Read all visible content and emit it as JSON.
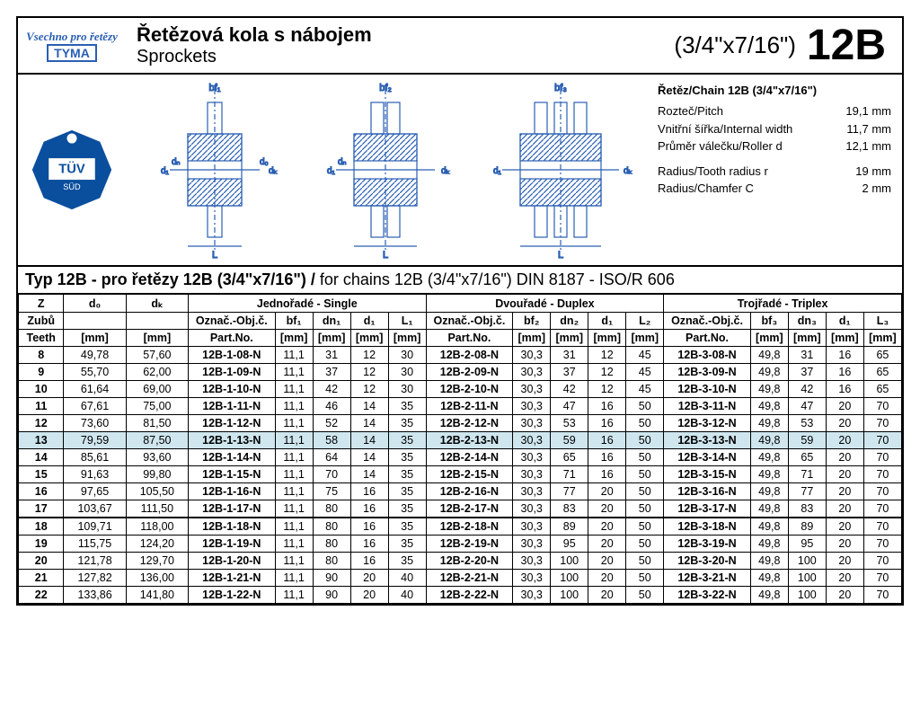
{
  "header": {
    "logo_script": "Vsechno\npro řetězy",
    "logo_box": "TYMA",
    "title_cz": "Řetězová kola s nábojem",
    "title_en": "Sprockets",
    "dimension": "(3/4\"x7/16\")",
    "code": "12B"
  },
  "specs": {
    "title": "Řetěz/Chain 12B (3/4\"x7/16\")",
    "rows": [
      {
        "label": "Rozteč/Pitch",
        "value": "19,1 mm"
      },
      {
        "label": "Vnitřní šířka/Internal width",
        "value": "11,7 mm"
      },
      {
        "label": "Průměr válečku/Roller d",
        "value": "12,1 mm"
      }
    ],
    "rows2": [
      {
        "label": "Radius/Tooth radius r",
        "value": "19 mm"
      },
      {
        "label": "Radius/Chamfer C",
        "value": "2 mm"
      }
    ]
  },
  "typbar": {
    "bold": "Typ 12B -  pro řetězy 12B (3/4\"x7/16\") /",
    "rest": " for chains 12B (3/4\"x7/16\") DIN 8187 - ISO/R 606"
  },
  "headers": {
    "h_single": "Jednořadé - Single",
    "h_duplex": "Dvouřadé - Duplex",
    "h_triplex": "Trojřadé - Triplex",
    "z": "Z",
    "d0": "d₀",
    "dk": "dₖ",
    "zubu": "Zubů",
    "teeth": "Teeth",
    "mm": "[mm]",
    "oznac": "Označ.-Obj.č.",
    "partno": "Part.No.",
    "bf1": "bf₁",
    "dn1": "dn₁",
    "d1": "d₁",
    "l1": "L₁",
    "bf2": "bf₂",
    "dn2": "dn₂",
    "l2": "L₂",
    "bf3": "bf₃",
    "dn3": "dn₃",
    "l3": "L₃"
  },
  "drawing_labels": {
    "bf1": "bf₁",
    "bf2": "bf₂",
    "bf3": "bf₃",
    "L": "L"
  },
  "rows": [
    {
      "z": "8",
      "d0": "49,78",
      "dk": "57,60",
      "s": {
        "pn": "12B-1-08-N",
        "bf": "11,1",
        "dn": "31",
        "d": "12",
        "l": "30"
      },
      "d": {
        "pn": "12B-2-08-N",
        "bf": "30,3",
        "dn": "31",
        "d1": "12",
        "l": "45"
      },
      "t": {
        "pn": "12B-3-08-N",
        "bf": "49,8",
        "dn": "31",
        "d1": "16",
        "l": "65"
      }
    },
    {
      "z": "9",
      "d0": "55,70",
      "dk": "62,00",
      "s": {
        "pn": "12B-1-09-N",
        "bf": "11,1",
        "dn": "37",
        "d": "12",
        "l": "30"
      },
      "d": {
        "pn": "12B-2-09-N",
        "bf": "30,3",
        "dn": "37",
        "d1": "12",
        "l": "45"
      },
      "t": {
        "pn": "12B-3-09-N",
        "bf": "49,8",
        "dn": "37",
        "d1": "16",
        "l": "65"
      }
    },
    {
      "z": "10",
      "d0": "61,64",
      "dk": "69,00",
      "s": {
        "pn": "12B-1-10-N",
        "bf": "11,1",
        "dn": "42",
        "d": "12",
        "l": "30"
      },
      "d": {
        "pn": "12B-2-10-N",
        "bf": "30,3",
        "dn": "42",
        "d1": "12",
        "l": "45"
      },
      "t": {
        "pn": "12B-3-10-N",
        "bf": "49,8",
        "dn": "42",
        "d1": "16",
        "l": "65"
      }
    },
    {
      "z": "11",
      "d0": "67,61",
      "dk": "75,00",
      "s": {
        "pn": "12B-1-11-N",
        "bf": "11,1",
        "dn": "46",
        "d": "14",
        "l": "35"
      },
      "d": {
        "pn": "12B-2-11-N",
        "bf": "30,3",
        "dn": "47",
        "d1": "16",
        "l": "50"
      },
      "t": {
        "pn": "12B-3-11-N",
        "bf": "49,8",
        "dn": "47",
        "d1": "20",
        "l": "70"
      }
    },
    {
      "z": "12",
      "d0": "73,60",
      "dk": "81,50",
      "s": {
        "pn": "12B-1-12-N",
        "bf": "11,1",
        "dn": "52",
        "d": "14",
        "l": "35"
      },
      "d": {
        "pn": "12B-2-12-N",
        "bf": "30,3",
        "dn": "53",
        "d1": "16",
        "l": "50"
      },
      "t": {
        "pn": "12B-3-12-N",
        "bf": "49,8",
        "dn": "53",
        "d1": "20",
        "l": "70"
      }
    },
    {
      "z": "13",
      "d0": "79,59",
      "dk": "87,50",
      "s": {
        "pn": "12B-1-13-N",
        "bf": "11,1",
        "dn": "58",
        "d": "14",
        "l": "35"
      },
      "d": {
        "pn": "12B-2-13-N",
        "bf": "30,3",
        "dn": "59",
        "d1": "16",
        "l": "50"
      },
      "t": {
        "pn": "12B-3-13-N",
        "bf": "49,8",
        "dn": "59",
        "d1": "20",
        "l": "70"
      },
      "hl": true
    },
    {
      "z": "14",
      "d0": "85,61",
      "dk": "93,60",
      "s": {
        "pn": "12B-1-14-N",
        "bf": "11,1",
        "dn": "64",
        "d": "14",
        "l": "35"
      },
      "d": {
        "pn": "12B-2-14-N",
        "bf": "30,3",
        "dn": "65",
        "d1": "16",
        "l": "50"
      },
      "t": {
        "pn": "12B-3-14-N",
        "bf": "49,8",
        "dn": "65",
        "d1": "20",
        "l": "70"
      }
    },
    {
      "z": "15",
      "d0": "91,63",
      "dk": "99,80",
      "s": {
        "pn": "12B-1-15-N",
        "bf": "11,1",
        "dn": "70",
        "d": "14",
        "l": "35"
      },
      "d": {
        "pn": "12B-2-15-N",
        "bf": "30,3",
        "dn": "71",
        "d1": "16",
        "l": "50"
      },
      "t": {
        "pn": "12B-3-15-N",
        "bf": "49,8",
        "dn": "71",
        "d1": "20",
        "l": "70"
      }
    },
    {
      "z": "16",
      "d0": "97,65",
      "dk": "105,50",
      "s": {
        "pn": "12B-1-16-N",
        "bf": "11,1",
        "dn": "75",
        "d": "16",
        "l": "35"
      },
      "d": {
        "pn": "12B-2-16-N",
        "bf": "30,3",
        "dn": "77",
        "d1": "20",
        "l": "50"
      },
      "t": {
        "pn": "12B-3-16-N",
        "bf": "49,8",
        "dn": "77",
        "d1": "20",
        "l": "70"
      }
    },
    {
      "z": "17",
      "d0": "103,67",
      "dk": "111,50",
      "s": {
        "pn": "12B-1-17-N",
        "bf": "11,1",
        "dn": "80",
        "d": "16",
        "l": "35"
      },
      "d": {
        "pn": "12B-2-17-N",
        "bf": "30,3",
        "dn": "83",
        "d1": "20",
        "l": "50"
      },
      "t": {
        "pn": "12B-3-17-N",
        "bf": "49,8",
        "dn": "83",
        "d1": "20",
        "l": "70"
      }
    },
    {
      "z": "18",
      "d0": "109,71",
      "dk": "118,00",
      "s": {
        "pn": "12B-1-18-N",
        "bf": "11,1",
        "dn": "80",
        "d": "16",
        "l": "35"
      },
      "d": {
        "pn": "12B-2-18-N",
        "bf": "30,3",
        "dn": "89",
        "d1": "20",
        "l": "50"
      },
      "t": {
        "pn": "12B-3-18-N",
        "bf": "49,8",
        "dn": "89",
        "d1": "20",
        "l": "70"
      },
      "sep": true
    },
    {
      "z": "19",
      "d0": "115,75",
      "dk": "124,20",
      "s": {
        "pn": "12B-1-19-N",
        "bf": "11,1",
        "dn": "80",
        "d": "16",
        "l": "35"
      },
      "d": {
        "pn": "12B-2-19-N",
        "bf": "30,3",
        "dn": "95",
        "d1": "20",
        "l": "50"
      },
      "t": {
        "pn": "12B-3-19-N",
        "bf": "49,8",
        "dn": "95",
        "d1": "20",
        "l": "70"
      }
    },
    {
      "z": "20",
      "d0": "121,78",
      "dk": "129,70",
      "s": {
        "pn": "12B-1-20-N",
        "bf": "11,1",
        "dn": "80",
        "d": "16",
        "l": "35"
      },
      "d": {
        "pn": "12B-2-20-N",
        "bf": "30,3",
        "dn": "100",
        "d1": "20",
        "l": "50"
      },
      "t": {
        "pn": "12B-3-20-N",
        "bf": "49,8",
        "dn": "100",
        "d1": "20",
        "l": "70"
      }
    },
    {
      "z": "21",
      "d0": "127,82",
      "dk": "136,00",
      "s": {
        "pn": "12B-1-21-N",
        "bf": "11,1",
        "dn": "90",
        "d": "20",
        "l": "40"
      },
      "d": {
        "pn": "12B-2-21-N",
        "bf": "30,3",
        "dn": "100",
        "d1": "20",
        "l": "50"
      },
      "t": {
        "pn": "12B-3-21-N",
        "bf": "49,8",
        "dn": "100",
        "d1": "20",
        "l": "70"
      }
    },
    {
      "z": "22",
      "d0": "133,86",
      "dk": "141,80",
      "s": {
        "pn": "12B-1-22-N",
        "bf": "11,1",
        "dn": "90",
        "d": "20",
        "l": "40"
      },
      "d": {
        "pn": "12B-2-22-N",
        "bf": "30,3",
        "dn": "100",
        "d1": "20",
        "l": "50"
      },
      "t": {
        "pn": "12B-3-22-N",
        "bf": "49,8",
        "dn": "100",
        "d1": "20",
        "l": "70"
      }
    }
  ],
  "colors": {
    "blue": "#2a5fb3",
    "hl": "#cfe6ee",
    "tuv": "#0a4f9e",
    "red": "#d7252a"
  }
}
